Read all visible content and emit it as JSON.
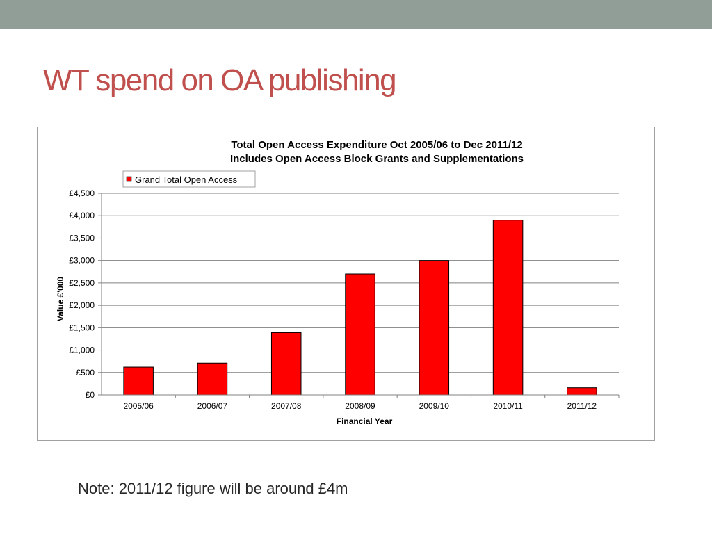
{
  "slide": {
    "title": "WT spend on OA publishing",
    "title_color": "#c0504d",
    "top_bar_color": "#919e98",
    "note": "Note: 2011/12 figure will be around £4m"
  },
  "chart_data": {
    "type": "bar",
    "title": "Total Open Access Expenditure Oct 2005/06 to Dec 2011/12",
    "subtitle": "Includes Open Access Block Grants and Supplementations",
    "xlabel": "Financial Year",
    "ylabel": "Value £'000",
    "categories": [
      "2005/06",
      "2006/07",
      "2007/08",
      "2008/09",
      "2009/10",
      "2010/11",
      "2011/12"
    ],
    "series": [
      {
        "name": "Grand Total Open Access",
        "values": [
          620,
          710,
          1390,
          2700,
          3000,
          3900,
          160
        ],
        "color": "#ff0000"
      }
    ],
    "ylim": [
      0,
      4500
    ],
    "yticks": [
      0,
      500,
      1000,
      1500,
      2000,
      2500,
      3000,
      3500,
      4000,
      4500
    ],
    "ytick_labels": [
      "£0",
      "£500",
      "£1,000",
      "£1,500",
      "£2,000",
      "£2,500",
      "£3,000",
      "£3,500",
      "£4,000",
      "£4,500"
    ],
    "grid": true,
    "legend_position": "top-left"
  }
}
